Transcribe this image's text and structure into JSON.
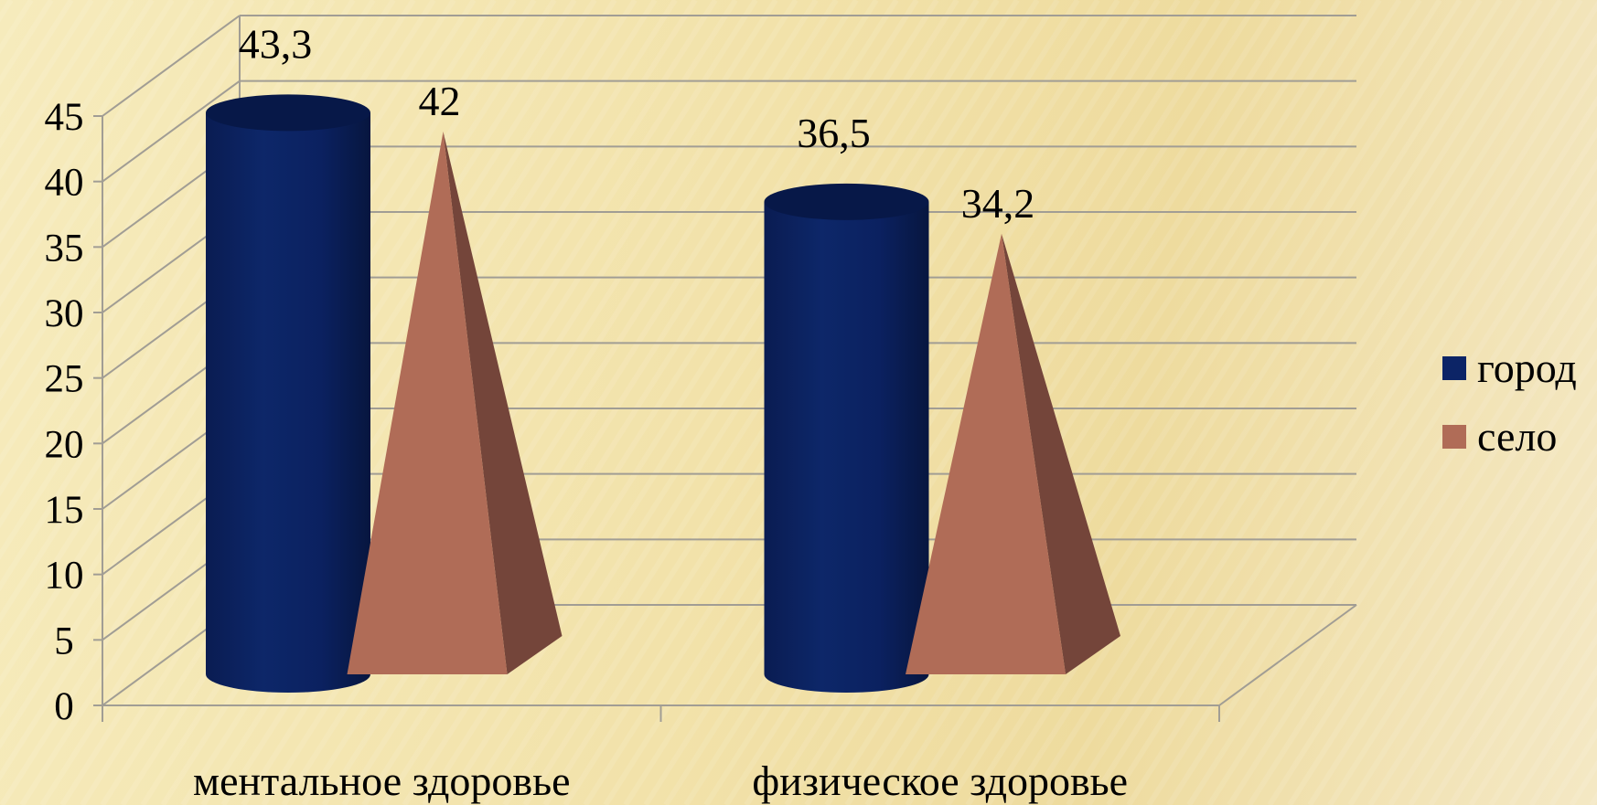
{
  "chart_data": {
    "type": "bar",
    "categories": [
      "ментальное здоровье",
      "физическое здоровье"
    ],
    "series": [
      {
        "name": "город",
        "values": [
          43.3,
          36.5
        ],
        "labels": [
          "43,3",
          "36,5"
        ],
        "color": "#0c2466",
        "shape": "cylinder"
      },
      {
        "name": "село",
        "values": [
          42,
          34.2
        ],
        "labels": [
          "42",
          "34,2"
        ],
        "color": "#b06c57",
        "shape": "pyramid"
      }
    ],
    "ylim": [
      0,
      45
    ],
    "yticks": [
      0,
      5,
      10,
      15,
      20,
      25,
      30,
      35,
      40,
      45
    ],
    "grid": true,
    "legend": "right",
    "title": "",
    "xlabel": "",
    "ylabel": ""
  }
}
